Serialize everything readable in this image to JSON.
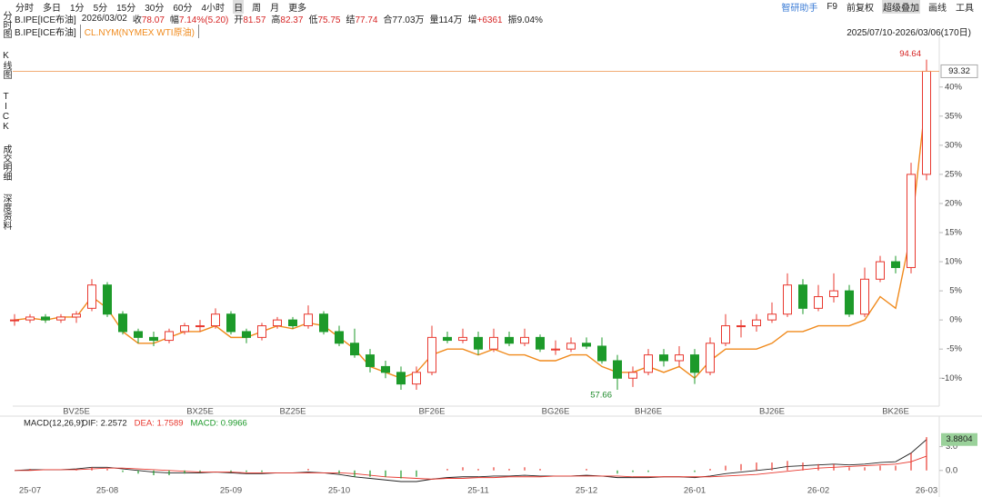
{
  "toolbar": {
    "periods": [
      "分时",
      "多日",
      "1分",
      "5分",
      "15分",
      "30分",
      "60分",
      "4小时",
      "日",
      "周",
      "月",
      "更多"
    ],
    "active_period": 8,
    "tools": [
      "智研助手",
      "F9",
      "前复权",
      "超级叠加",
      "画线",
      "工具"
    ],
    "active_tool": 3
  },
  "side_tabs": [
    "分时图",
    "K线图",
    "TICK",
    "成交明细",
    "深度资料"
  ],
  "quote": {
    "symbol": "B.IPE[ICE布油]",
    "date": "2026/03/02",
    "fields": [
      {
        "label": "收",
        "value": "78.07",
        "color": "#d62424"
      },
      {
        "label": "幅",
        "value": "7.14%(5.20)",
        "color": "#d62424"
      },
      {
        "label": "开",
        "value": "81.57",
        "color": "#d62424"
      },
      {
        "label": "高",
        "value": "82.37",
        "color": "#d62424"
      },
      {
        "label": "低",
        "value": "75.75",
        "color": "#d62424"
      },
      {
        "label": "结",
        "value": "77.74",
        "color": "#d62424"
      },
      {
        "label": "合",
        "value": "77.03万",
        "color": "#222222"
      },
      {
        "label": "量",
        "value": "114万",
        "color": "#222222"
      },
      {
        "label": "增",
        "value": "+6361",
        "color": "#d62424"
      },
      {
        "label": "振",
        "value": "9.04%",
        "color": "#222222"
      }
    ]
  },
  "chart_data": [
    {
      "type": "candlestick",
      "date_range": "2025/07/10-2026/03/06(170日)",
      "series": [
        {
          "name": "B.IPE[ICE布油]",
          "up_color": "#e8382f",
          "down_color": "#1d9a2a",
          "open": [
            0,
            0,
            0.5,
            0,
            0.5,
            2,
            6,
            1,
            -2,
            -3,
            -3.5,
            -2,
            -1,
            -1,
            1,
            -2,
            -3,
            -1,
            0,
            -1,
            1,
            -2,
            -4,
            -6,
            -8,
            -9,
            -11,
            -9,
            -3,
            -3.5,
            -3,
            -5,
            -3,
            -4,
            -3,
            -5,
            -5,
            -4,
            -4.5,
            -7,
            -10,
            -9,
            -6,
            -7,
            -6,
            -9,
            -4,
            -1,
            -1,
            0,
            1,
            6,
            2,
            4,
            5,
            1,
            7,
            10,
            9,
            25
          ],
          "high": [
            1,
            1,
            1,
            1,
            1.5,
            7,
            6.5,
            1.5,
            -1.5,
            -2,
            -1.5,
            -0.5,
            0,
            2,
            1.5,
            -1.5,
            -0.5,
            0.5,
            0.5,
            2.5,
            1.5,
            -1,
            -1.5,
            -5,
            -7,
            -8,
            -8,
            -1,
            -2,
            -1.5,
            -2,
            -1.5,
            -2,
            -1.5,
            -2.5,
            -3.5,
            -3,
            -3,
            -3,
            -6,
            -8,
            -5,
            -5,
            -4.5,
            -5,
            -3,
            1,
            0,
            1,
            3,
            8,
            7,
            6,
            8,
            6,
            9,
            11,
            11,
            27,
            44.7
          ],
          "low": [
            -1,
            -0.5,
            -0.5,
            -0.5,
            -0.5,
            1.5,
            0.5,
            -2.5,
            -4,
            -4.5,
            -4,
            -2.5,
            -2,
            -1.5,
            -2.5,
            -4,
            -3.5,
            -1.5,
            -1.5,
            -1.5,
            -2.5,
            -4.5,
            -6.5,
            -9,
            -10,
            -12,
            -12,
            -9.5,
            -4,
            -4,
            -6,
            -5.5,
            -4.5,
            -4.5,
            -5.5,
            -6,
            -5.5,
            -5,
            -7.5,
            -12,
            -11.5,
            -9.5,
            -8,
            -8,
            -11,
            -9.5,
            -4.5,
            -3,
            -2,
            -0.5,
            0.5,
            1,
            1.5,
            3,
            0.5,
            0.5,
            6.5,
            8,
            8,
            24
          ],
          "close": [
            0,
            0.5,
            0,
            0.5,
            1,
            6,
            1,
            -2,
            -3,
            -3.5,
            -2,
            -1,
            -1,
            1,
            -2,
            -3,
            -1,
            0,
            -1,
            1,
            -2,
            -4,
            -6,
            -8,
            -9,
            -11,
            -9,
            -3,
            -3.5,
            -3,
            -5,
            -3,
            -4,
            -3,
            -5,
            -5,
            -4,
            -4.5,
            -7,
            -10,
            -9,
            -6,
            -7,
            -6,
            -9,
            -4,
            -1,
            -1,
            0,
            1,
            6,
            2,
            4,
            5,
            1,
            7,
            10,
            9,
            25,
            42.7
          ]
        },
        {
          "name": "CL.NYM(NYMEX WTI原油)",
          "color": "#f08a1c",
          "values": [
            0,
            0.3,
            0,
            0.5,
            0.5,
            4,
            2,
            -2,
            -4,
            -4,
            -3,
            -2,
            -2,
            -1,
            -3,
            -3,
            -2,
            -1,
            -1.5,
            -0.5,
            -1,
            -3,
            -5,
            -8,
            -9,
            -10,
            -9,
            -6,
            -5,
            -5,
            -6,
            -5,
            -6,
            -6,
            -7,
            -7,
            -6,
            -6,
            -8,
            -9,
            -9,
            -8,
            -9,
            -8,
            -10,
            -7,
            -5,
            -5,
            -5,
            -4,
            -2,
            -2,
            -1,
            -1,
            -1,
            0,
            4,
            2,
            15,
            39
          ]
        }
      ],
      "x_labels": [
        {
          "label": "BV25E",
          "index": 4
        },
        {
          "label": "BX25E",
          "index": 12
        },
        {
          "label": "BZ25E",
          "index": 18
        },
        {
          "label": "BF26E",
          "index": 27
        },
        {
          "label": "BG26E",
          "index": 35
        },
        {
          "label": "BH26E",
          "index": 41
        },
        {
          "label": "BJ26E",
          "index": 49
        },
        {
          "label": "BK26E",
          "index": 57
        }
      ],
      "ylim": [
        -14.8,
        48.7
      ],
      "yticks": [
        {
          "value": -10,
          "label": "-10%"
        },
        {
          "value": -5,
          "label": "-5%"
        },
        {
          "value": 0,
          "label": "0%"
        },
        {
          "value": 5,
          "label": "5%"
        },
        {
          "value": 10,
          "label": "10%"
        },
        {
          "value": 15,
          "label": "15%"
        },
        {
          "value": 20,
          "label": "20%"
        },
        {
          "value": 25,
          "label": "25%"
        },
        {
          "value": 30,
          "label": "30%"
        },
        {
          "value": 35,
          "label": "35%"
        },
        {
          "value": 40,
          "label": "40%"
        }
      ],
      "annotations": [
        {
          "kind": "high",
          "label": "94.64",
          "value": 44.7,
          "index": 59,
          "color": "#d62424"
        },
        {
          "kind": "low",
          "label": "57.66",
          "value": -12,
          "index": 39,
          "color": "#1d8a2a"
        },
        {
          "kind": "last",
          "label": "93.32",
          "value": 42.7,
          "color": "#f0a060"
        }
      ]
    },
    {
      "type": "macd",
      "title": "MACD(12,26,9)",
      "series": [
        {
          "legend": "DIF: 2.2572",
          "color": "#222222",
          "kind": "line",
          "values": [
            0,
            0.1,
            0.1,
            0.1,
            0.2,
            0.4,
            0.4,
            0.2,
            0,
            -0.2,
            -0.3,
            -0.3,
            -0.3,
            -0.2,
            -0.3,
            -0.4,
            -0.4,
            -0.3,
            -0.3,
            -0.2,
            -0.3,
            -0.5,
            -0.8,
            -1.0,
            -1.2,
            -1.4,
            -1.4,
            -1.1,
            -0.9,
            -0.8,
            -0.8,
            -0.7,
            -0.7,
            -0.6,
            -0.7,
            -0.7,
            -0.7,
            -0.6,
            -0.7,
            -0.9,
            -0.9,
            -0.9,
            -0.8,
            -0.8,
            -0.9,
            -0.7,
            -0.4,
            -0.2,
            0,
            0.2,
            0.5,
            0.6,
            0.7,
            0.8,
            0.7,
            0.8,
            1.0,
            1.1,
            2.2,
            3.9
          ]
        },
        {
          "legend": "DEA: 1.7589",
          "color": "#e8382f",
          "kind": "line",
          "values": [
            0,
            0,
            0.1,
            0.1,
            0.1,
            0.2,
            0.3,
            0.3,
            0.2,
            0.1,
            0,
            -0.1,
            -0.2,
            -0.2,
            -0.2,
            -0.3,
            -0.3,
            -0.3,
            -0.3,
            -0.3,
            -0.3,
            -0.3,
            -0.4,
            -0.6,
            -0.8,
            -0.9,
            -1.0,
            -1.1,
            -1.0,
            -1.0,
            -0.9,
            -0.9,
            -0.8,
            -0.8,
            -0.8,
            -0.7,
            -0.7,
            -0.7,
            -0.7,
            -0.7,
            -0.8,
            -0.8,
            -0.8,
            -0.8,
            -0.8,
            -0.8,
            -0.7,
            -0.6,
            -0.5,
            -0.3,
            -0.1,
            0.1,
            0.3,
            0.4,
            0.5,
            0.6,
            0.7,
            0.8,
            1.1,
            1.8
          ]
        },
        {
          "legend": "MACD: 0.9966",
          "color": "#1d9a2a",
          "up_color": "#e8382f",
          "kind": "bar",
          "values": [
            0,
            0.2,
            0,
            0,
            0.2,
            0.4,
            0.2,
            -0.2,
            -0.4,
            -0.6,
            -0.6,
            -0.4,
            -0.2,
            0,
            -0.2,
            -0.2,
            -0.2,
            0,
            0,
            0.2,
            0,
            -0.4,
            -0.8,
            -0.8,
            -0.8,
            -1,
            -0.8,
            0,
            0.2,
            0.4,
            0.2,
            0.4,
            0.2,
            0.4,
            0.2,
            0,
            0,
            0.2,
            0,
            -0.4,
            -0.2,
            -0.2,
            0,
            0,
            -0.2,
            0.2,
            0.6,
            0.8,
            1,
            1,
            1.2,
            1,
            0.8,
            0.8,
            0.4,
            0.4,
            0.6,
            0.6,
            2.2,
            4.2
          ]
        }
      ],
      "x_labels": [
        {
          "label": "25-07",
          "index": 1
        },
        {
          "label": "25-08",
          "index": 6
        },
        {
          "label": "25-09",
          "index": 14
        },
        {
          "label": "25-10",
          "index": 21
        },
        {
          "label": "25-11",
          "index": 30
        },
        {
          "label": "25-12",
          "index": 37
        },
        {
          "label": "26-01",
          "index": 44
        },
        {
          "label": "26-02",
          "index": 52
        },
        {
          "label": "26-03",
          "index": 59
        }
      ],
      "ylim": [
        -1.4,
        4.9
      ],
      "yticks": [
        {
          "value": 0,
          "label": "0.0"
        },
        {
          "value": 3,
          "label": "3.0"
        }
      ],
      "marker": {
        "label": "3.8804",
        "value": 3.9,
        "color": "#9ad19a"
      }
    }
  ]
}
